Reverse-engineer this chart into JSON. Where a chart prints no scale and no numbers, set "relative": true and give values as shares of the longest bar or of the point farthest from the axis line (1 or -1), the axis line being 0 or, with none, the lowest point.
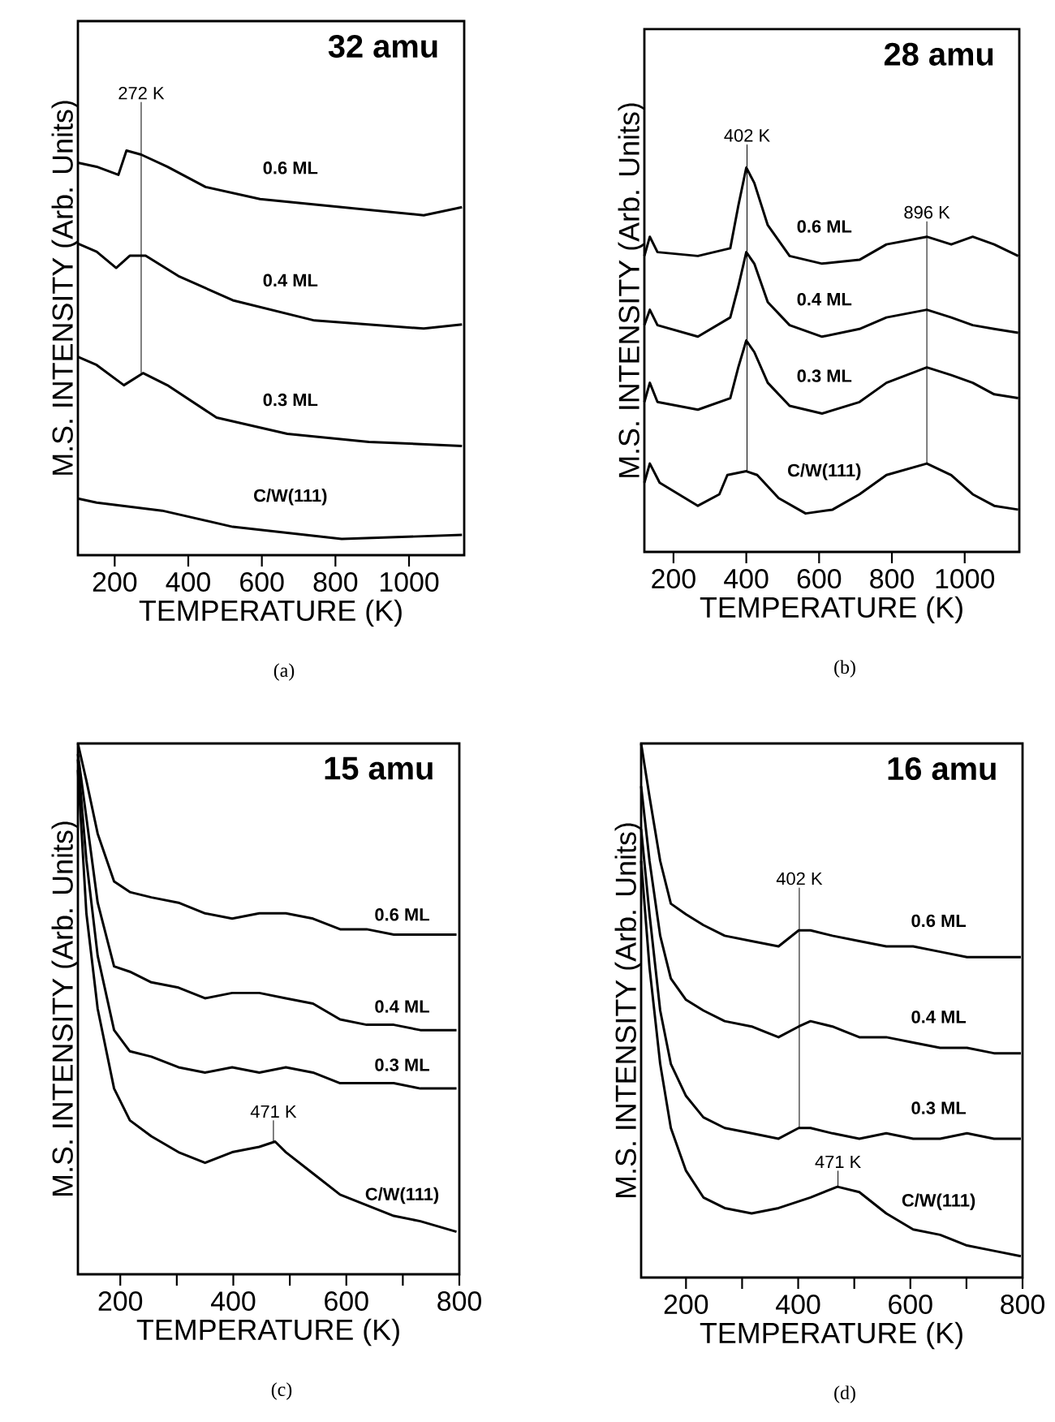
{
  "chart_data": [
    {
      "type": "line",
      "title": "32 amu",
      "xlabel": "TEMPERATURE (K)",
      "ylabel": "M.S. INTENSITY (Arb. Units)",
      "relative": true,
      "tick_labels": "x",
      "xlim": [
        100,
        1150
      ],
      "xticks": [
        200,
        400,
        600,
        800,
        1000
      ],
      "annotations": [
        "(a)",
        {
          "text": "272 K",
          "x": 272,
          "y": 0.45
        }
      ],
      "series": [
        {
          "name": "0.6 ML",
          "color": "#000000",
          "x": [
            100,
            151,
            210,
            232,
            272,
            343,
            447,
            595,
            817,
            1040,
            1144
          ],
          "values": [
            0.97,
            0.96,
            0.94,
            1.0,
            0.99,
            0.96,
            0.91,
            0.88,
            0.86,
            0.84,
            0.86
          ]
        },
        {
          "name": "0.4 ML",
          "color": "#000000",
          "x": [
            100,
            151,
            204,
            241,
            284,
            373,
            521,
            743,
            1040,
            1144
          ],
          "values": [
            0.77,
            0.75,
            0.71,
            0.74,
            0.74,
            0.69,
            0.63,
            0.58,
            0.56,
            0.57
          ]
        },
        {
          "name": "0.3 ML",
          "color": "#000000",
          "x": [
            100,
            151,
            225,
            277,
            343,
            477,
            669,
            891,
            1144
          ],
          "values": [
            0.49,
            0.47,
            0.42,
            0.45,
            0.42,
            0.34,
            0.3,
            0.28,
            0.27
          ]
        },
        {
          "name": "C/W(111)",
          "color": "#000000",
          "x": [
            100,
            151,
            329,
            521,
            817,
            1144
          ],
          "values": [
            0.14,
            0.13,
            0.11,
            0.07,
            0.04,
            0.05
          ]
        }
      ]
    },
    {
      "type": "line",
      "title": "28 amu",
      "xlabel": "TEMPERATURE (K)",
      "ylabel": "M.S. INTENSITY (Arb. Units)",
      "relative": true,
      "tick_labels": "x",
      "xlim": [
        120,
        1150
      ],
      "xticks": [
        200,
        400,
        600,
        800,
        1000
      ],
      "annotations": [
        "(b)",
        {
          "text": "402 K",
          "x": 402,
          "y": 1.0
        },
        {
          "text": "896 K",
          "x": 896,
          "y": 0.82
        }
      ],
      "series": [
        {
          "name": "0.6 ML",
          "color": "#000000",
          "x": [
            120,
            135,
            156,
            267,
            356,
            378,
            400,
            422,
            459,
            519,
            608,
            711,
            785,
            896,
            963,
            1022,
            1081,
            1147
          ],
          "values": [
            0.77,
            0.82,
            0.78,
            0.77,
            0.79,
            0.9,
            1.0,
            0.96,
            0.85,
            0.77,
            0.75,
            0.76,
            0.8,
            0.82,
            0.8,
            0.82,
            0.8,
            0.77
          ]
        },
        {
          "name": "0.4 ML",
          "color": "#000000",
          "x": [
            120,
            135,
            156,
            267,
            356,
            378,
            400,
            422,
            459,
            519,
            608,
            711,
            785,
            896,
            963,
            1022,
            1081,
            1147
          ],
          "values": [
            0.59,
            0.63,
            0.59,
            0.56,
            0.61,
            0.69,
            0.78,
            0.75,
            0.65,
            0.59,
            0.56,
            0.58,
            0.61,
            0.63,
            0.61,
            0.59,
            0.58,
            0.57
          ]
        },
        {
          "name": "0.3 ML",
          "color": "#000000",
          "x": [
            120,
            135,
            156,
            267,
            356,
            378,
            400,
            422,
            459,
            519,
            608,
            711,
            785,
            896,
            963,
            1022,
            1081,
            1147
          ],
          "values": [
            0.39,
            0.44,
            0.39,
            0.37,
            0.4,
            0.48,
            0.55,
            0.52,
            0.44,
            0.38,
            0.36,
            0.39,
            0.44,
            0.48,
            0.46,
            0.44,
            0.41,
            0.4
          ]
        },
        {
          "name": "C/W(111)",
          "color": "#000000",
          "x": [
            120,
            135,
            162,
            267,
            326,
            348,
            400,
            430,
            489,
            563,
            637,
            711,
            785,
            896,
            963,
            1022,
            1081,
            1147
          ],
          "values": [
            0.18,
            0.23,
            0.18,
            0.12,
            0.15,
            0.2,
            0.21,
            0.2,
            0.14,
            0.1,
            0.11,
            0.15,
            0.2,
            0.23,
            0.2,
            0.15,
            0.12,
            0.11
          ]
        }
      ]
    },
    {
      "type": "line",
      "title": "15 amu",
      "xlabel": "TEMPERATURE (K)",
      "ylabel": "M.S. INTENSITY (Arb. Units)",
      "relative": true,
      "tick_labels": "x",
      "xlim": [
        125,
        800
      ],
      "xticks": [
        200,
        {
          "value": 300,
          "label": null
        },
        400,
        {
          "value": 500,
          "label": null
        },
        600,
        {
          "value": 700,
          "label": null
        },
        800
      ],
      "annotations": [
        "(c)",
        {
          "text": "471 K",
          "x": 471,
          "y": 0.25
        }
      ],
      "series": [
        {
          "name": "0.6 ML",
          "color": "#000000",
          "x": [
            125,
            140,
            160,
            189,
            217,
            255,
            303,
            350,
            398,
            446,
            493,
            541,
            589,
            636,
            684,
            731,
            795
          ],
          "values": [
            1.0,
            0.93,
            0.83,
            0.74,
            0.72,
            0.71,
            0.7,
            0.68,
            0.67,
            0.68,
            0.68,
            0.67,
            0.65,
            0.65,
            0.64,
            0.64,
            0.64
          ]
        },
        {
          "name": "0.4 ML",
          "color": "#000000",
          "x": [
            125,
            140,
            160,
            189,
            217,
            255,
            303,
            350,
            398,
            446,
            493,
            541,
            589,
            636,
            684,
            731,
            795
          ],
          "values": [
            0.98,
            0.86,
            0.7,
            0.58,
            0.57,
            0.55,
            0.54,
            0.52,
            0.53,
            0.53,
            0.52,
            0.51,
            0.48,
            0.47,
            0.47,
            0.46,
            0.46
          ]
        },
        {
          "name": "0.3 ML",
          "color": "#000000",
          "x": [
            125,
            140,
            160,
            189,
            217,
            255,
            303,
            350,
            398,
            446,
            493,
            541,
            589,
            636,
            684,
            731,
            795
          ],
          "values": [
            0.97,
            0.78,
            0.6,
            0.46,
            0.42,
            0.41,
            0.39,
            0.38,
            0.39,
            0.38,
            0.39,
            0.38,
            0.36,
            0.36,
            0.36,
            0.35,
            0.35
          ]
        },
        {
          "name": "C/W(111)",
          "color": "#000000",
          "x": [
            125,
            140,
            160,
            189,
            217,
            255,
            303,
            350,
            398,
            446,
            474,
            493,
            541,
            589,
            636,
            684,
            731,
            795
          ],
          "values": [
            0.95,
            0.68,
            0.5,
            0.35,
            0.29,
            0.26,
            0.23,
            0.21,
            0.23,
            0.24,
            0.25,
            0.23,
            0.19,
            0.15,
            0.13,
            0.11,
            0.1,
            0.08
          ]
        }
      ]
    },
    {
      "type": "line",
      "title": "16 amu",
      "xlabel": "TEMPERATURE (K)",
      "ylabel": "M.S. INTENSITY (Arb. Units)",
      "relative": true,
      "tick_labels": "x",
      "xlim": [
        120,
        800
      ],
      "xticks": [
        200,
        {
          "value": 300,
          "label": null
        },
        400,
        {
          "value": 500,
          "label": null
        },
        600,
        {
          "value": 700,
          "label": null
        },
        800
      ],
      "annotations": [
        "(d)",
        {
          "text": "402 K",
          "x": 402,
          "y": 0.28
        },
        {
          "text": "471 K",
          "x": 471,
          "y": 0.17
        }
      ],
      "series": [
        {
          "name": "0.6 ML",
          "color": "#000000",
          "x": [
            120,
            135,
            154,
            173,
            200,
            231,
            269,
            317,
            365,
            401,
            422,
            461,
            509,
            557,
            605,
            653,
            701,
            749,
            797
          ],
          "values": [
            1.0,
            0.9,
            0.78,
            0.7,
            0.68,
            0.66,
            0.64,
            0.63,
            0.62,
            0.65,
            0.65,
            0.64,
            0.63,
            0.62,
            0.62,
            0.61,
            0.6,
            0.6,
            0.6
          ]
        },
        {
          "name": "0.4 ML",
          "color": "#000000",
          "x": [
            120,
            135,
            154,
            173,
            200,
            231,
            269,
            317,
            365,
            401,
            422,
            461,
            509,
            557,
            605,
            653,
            701,
            749,
            797
          ],
          "values": [
            0.92,
            0.78,
            0.64,
            0.56,
            0.52,
            0.5,
            0.48,
            0.47,
            0.45,
            0.47,
            0.48,
            0.47,
            0.45,
            0.45,
            0.44,
            0.43,
            0.43,
            0.42,
            0.42
          ]
        },
        {
          "name": "0.3 ML",
          "color": "#000000",
          "x": [
            120,
            135,
            154,
            173,
            200,
            231,
            269,
            317,
            365,
            401,
            422,
            461,
            509,
            557,
            605,
            653,
            701,
            749,
            797
          ],
          "values": [
            0.84,
            0.68,
            0.5,
            0.4,
            0.34,
            0.3,
            0.28,
            0.27,
            0.26,
            0.28,
            0.28,
            0.27,
            0.26,
            0.27,
            0.26,
            0.26,
            0.27,
            0.26,
            0.26
          ]
        },
        {
          "name": "C/W(111)",
          "color": "#000000",
          "x": [
            120,
            135,
            154,
            173,
            200,
            231,
            269,
            317,
            365,
            422,
            470,
            509,
            557,
            605,
            653,
            701,
            749,
            797
          ],
          "values": [
            0.78,
            0.58,
            0.4,
            0.28,
            0.2,
            0.15,
            0.13,
            0.12,
            0.13,
            0.15,
            0.17,
            0.16,
            0.12,
            0.09,
            0.08,
            0.06,
            0.05,
            0.04
          ]
        }
      ]
    }
  ]
}
